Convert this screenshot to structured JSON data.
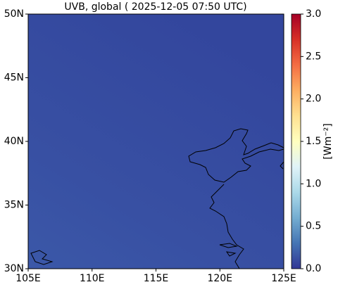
{
  "chart_data": {
    "type": "map",
    "title": "UVB, global ( 2025-12-05 07:50 UTC)",
    "xlim": [
      105,
      125
    ],
    "xticks": [
      {
        "value": 105,
        "label": "105E"
      },
      {
        "value": 110,
        "label": "110E"
      },
      {
        "value": 115,
        "label": "115E"
      },
      {
        "value": 120,
        "label": "120E"
      },
      {
        "value": 125,
        "label": "125E"
      }
    ],
    "ylim": [
      30,
      50
    ],
    "yticks": [
      {
        "value": 30,
        "label": "30N"
      },
      {
        "value": 35,
        "label": "35N"
      },
      {
        "value": 40,
        "label": "40N"
      },
      {
        "value": 45,
        "label": "45N"
      },
      {
        "value": 50,
        "label": "50N"
      }
    ],
    "colorbar": {
      "label": "[Wm⁻²]",
      "lim": [
        0,
        3
      ],
      "ticks": [
        {
          "value": 0,
          "label": "0.0"
        },
        {
          "value": 0.5,
          "label": "0.5"
        },
        {
          "value": 1,
          "label": "1.0"
        },
        {
          "value": 1.5,
          "label": "1.5"
        },
        {
          "value": 2,
          "label": "2.0"
        },
        {
          "value": 2.5,
          "label": "2.5"
        },
        {
          "value": 3,
          "label": "3.0"
        }
      ]
    }
  }
}
